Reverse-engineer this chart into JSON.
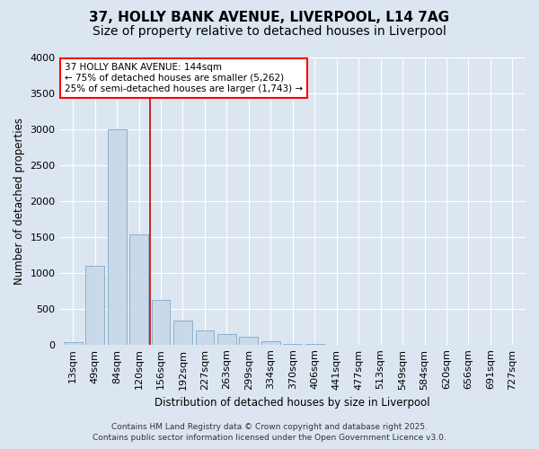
{
  "title": "37, HOLLY BANK AVENUE, LIVERPOOL, L14 7AG",
  "subtitle": "Size of property relative to detached houses in Liverpool",
  "xlabel": "Distribution of detached houses by size in Liverpool",
  "ylabel": "Number of detached properties",
  "bar_color": "#c9d9ea",
  "bar_edge_color": "#8ab0cc",
  "background_color": "#dce6f0",
  "plot_bg_color": "#dce6f0",
  "grid_color": "#ffffff",
  "categories": [
    "13sqm",
    "49sqm",
    "84sqm",
    "120sqm",
    "156sqm",
    "192sqm",
    "227sqm",
    "263sqm",
    "299sqm",
    "334sqm",
    "370sqm",
    "406sqm",
    "441sqm",
    "477sqm",
    "513sqm",
    "549sqm",
    "584sqm",
    "620sqm",
    "656sqm",
    "691sqm",
    "727sqm"
  ],
  "values": [
    30,
    1100,
    3000,
    1540,
    620,
    330,
    195,
    150,
    105,
    45,
    8,
    5,
    0,
    0,
    0,
    0,
    0,
    0,
    0,
    0,
    0
  ],
  "ylim": [
    0,
    4000
  ],
  "yticks": [
    0,
    500,
    1000,
    1500,
    2000,
    2500,
    3000,
    3500,
    4000
  ],
  "vline_color": "#cc0000",
  "vline_pos": 3.5,
  "annotation_title": "37 HOLLY BANK AVENUE: 144sqm",
  "annotation_line1": "← 75% of detached houses are smaller (5,262)",
  "annotation_line2": "25% of semi-detached houses are larger (1,743) →",
  "footer_line1": "Contains HM Land Registry data © Crown copyright and database right 2025.",
  "footer_line2": "Contains public sector information licensed under the Open Government Licence v3.0.",
  "title_fontsize": 11,
  "subtitle_fontsize": 10,
  "axis_label_fontsize": 8.5,
  "tick_fontsize": 8,
  "annotation_fontsize": 7.5,
  "footer_fontsize": 6.5
}
